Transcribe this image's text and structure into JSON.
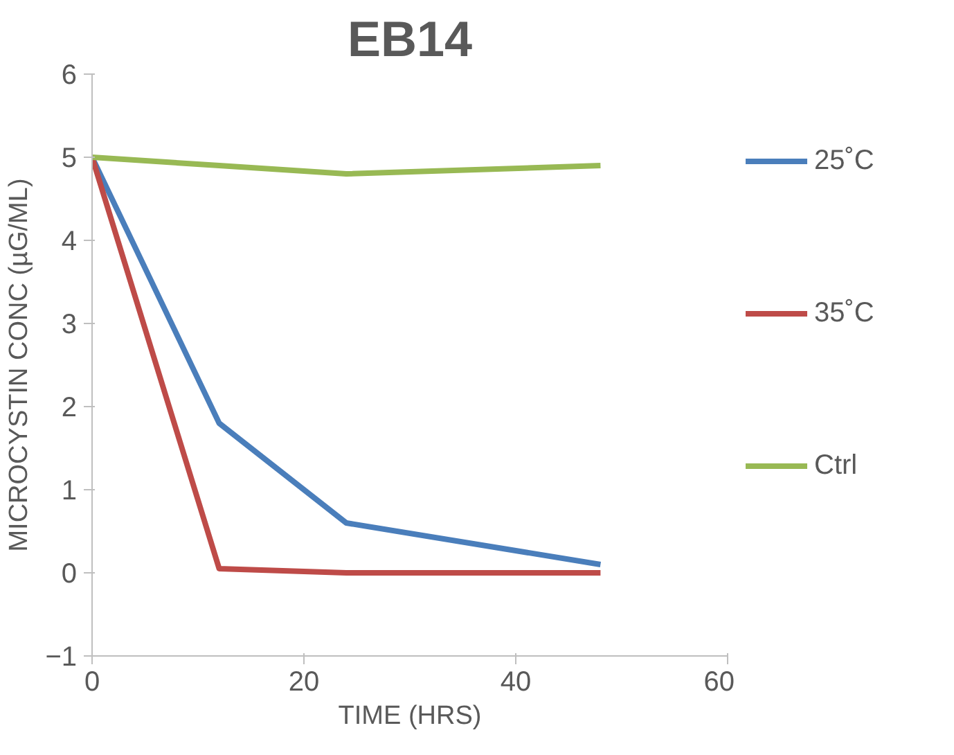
{
  "chart_data": {
    "type": "line",
    "title": "EB14",
    "xlabel": "TIME (HRS)",
    "ylabel": "MICROCYSTIN CONC (µG/ML)",
    "x": [
      0,
      12,
      24,
      48
    ],
    "series": [
      {
        "name": "25˚C",
        "color": "#4a7ebb",
        "values": [
          5,
          1.8,
          0.6,
          0.1
        ]
      },
      {
        "name": "35˚C",
        "color": "#be4b48",
        "values": [
          5,
          0.05,
          0,
          0
        ]
      },
      {
        "name": "Ctrl",
        "color": "#98b954",
        "values": [
          5,
          4.9,
          4.8,
          4.9
        ]
      }
    ],
    "xlim": [
      0,
      60
    ],
    "xticks": [
      0,
      20,
      40,
      60
    ],
    "ylim": [
      -1,
      6
    ],
    "yticks": [
      -1,
      0,
      1,
      2,
      3,
      4,
      5,
      6
    ],
    "grid": false,
    "legend": "right",
    "marker": "none",
    "line_style": "solid"
  }
}
